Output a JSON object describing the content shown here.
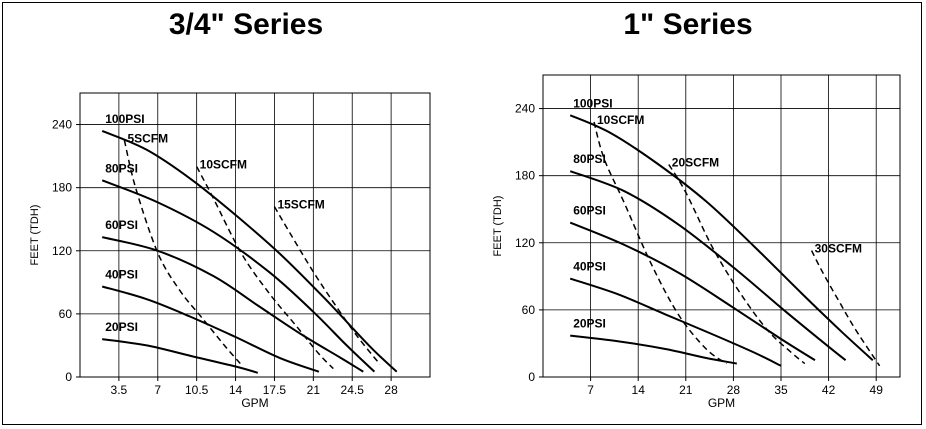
{
  "chart_data": [
    {
      "type": "line",
      "title": "3/4\" Series",
      "xlabel": "GPM",
      "ylabel": "FEET (TDH)",
      "xlim": [
        0,
        31.5
      ],
      "ylim": [
        0,
        270
      ],
      "xticks": [
        "3.5",
        "7",
        "10.5",
        "14",
        "17.5",
        "21",
        "24.5",
        "28"
      ],
      "yticks": [
        "0",
        "60",
        "120",
        "180",
        "240"
      ],
      "grid": true,
      "pressure_series": [
        {
          "name": "100PSI",
          "x": [
            2,
            6,
            10,
            14,
            18,
            22,
            26,
            28.5
          ],
          "y": [
            234,
            216,
            188,
            154,
            117,
            75,
            30,
            5
          ]
        },
        {
          "name": "80PSI",
          "x": [
            2,
            7,
            12,
            17,
            21,
            24,
            26.5
          ],
          "y": [
            187,
            166,
            138,
            100,
            62,
            30,
            5
          ]
        },
        {
          "name": "60PSI",
          "x": [
            2,
            7,
            12,
            16,
            20,
            23.5,
            25.5
          ],
          "y": [
            133,
            120,
            96,
            68,
            40,
            18,
            5
          ]
        },
        {
          "name": "40PSI",
          "x": [
            2,
            6,
            10,
            14,
            18,
            21.5
          ],
          "y": [
            86,
            74,
            57,
            38,
            18,
            5
          ]
        },
        {
          "name": "20PSI",
          "x": [
            2,
            6,
            10,
            14,
            16
          ],
          "y": [
            36,
            30,
            20,
            10,
            4
          ]
        }
      ],
      "air_series": [
        {
          "name": "5SCFM",
          "x": [
            4,
            5,
            7,
            9,
            11,
            13,
            14.5
          ],
          "y": [
            225,
            180,
            118,
            82,
            56,
            30,
            12
          ]
        },
        {
          "name": "10SCFM",
          "x": [
            10.5,
            12,
            14.5,
            17,
            19.5,
            21.5,
            22.8
          ],
          "y": [
            200,
            170,
            118,
            80,
            48,
            22,
            8
          ]
        },
        {
          "name": "15SCFM",
          "x": [
            17.5,
            19,
            21,
            23,
            25,
            27
          ],
          "y": [
            162,
            135,
            100,
            68,
            38,
            12
          ]
        }
      ]
    },
    {
      "type": "line",
      "title": "1\" Series",
      "xlabel": "GPM",
      "ylabel": "FEET (TDH)",
      "xlim": [
        0,
        52.5
      ],
      "ylim": [
        0,
        270
      ],
      "xticks": [
        "7",
        "14",
        "21",
        "28",
        "35",
        "42",
        "49"
      ],
      "yticks": [
        "0",
        "60",
        "120",
        "180",
        "240"
      ],
      "grid": true,
      "pressure_series": [
        {
          "name": "100PSI",
          "x": [
            4,
            10,
            17,
            24,
            31,
            38,
            44,
            48.5
          ],
          "y": [
            234,
            218,
            190,
            157,
            117,
            75,
            40,
            15
          ]
        },
        {
          "name": "80PSI",
          "x": [
            4,
            12,
            20,
            28,
            35,
            41,
            44.5
          ],
          "y": [
            184,
            166,
            136,
            98,
            62,
            32,
            15
          ]
        },
        {
          "name": "60PSI",
          "x": [
            4,
            12,
            20,
            28,
            35,
            40
          ],
          "y": [
            138,
            118,
            93,
            62,
            34,
            15
          ]
        },
        {
          "name": "40PSI",
          "x": [
            4,
            11,
            18,
            25,
            31,
            35
          ],
          "y": [
            88,
            74,
            56,
            38,
            22,
            10
          ]
        },
        {
          "name": "20PSI",
          "x": [
            4,
            11,
            18,
            24,
            28.5
          ],
          "y": [
            37,
            32,
            25,
            17,
            12
          ]
        }
      ],
      "air_series": [
        {
          "name": "10SCFM",
          "x": [
            7.5,
            9,
            12,
            16,
            20,
            24,
            27
          ],
          "y": [
            228,
            195,
            155,
            100,
            55,
            25,
            12
          ]
        },
        {
          "name": "20SCFM",
          "x": [
            18.5,
            21,
            25,
            29,
            33,
            36.5,
            38.5
          ],
          "y": [
            190,
            165,
            115,
            75,
            42,
            22,
            12
          ]
        },
        {
          "name": "30SCFM",
          "x": [
            39.5,
            41,
            43.5,
            46,
            49.5
          ],
          "y": [
            113,
            95,
            68,
            42,
            10
          ]
        }
      ]
    }
  ]
}
